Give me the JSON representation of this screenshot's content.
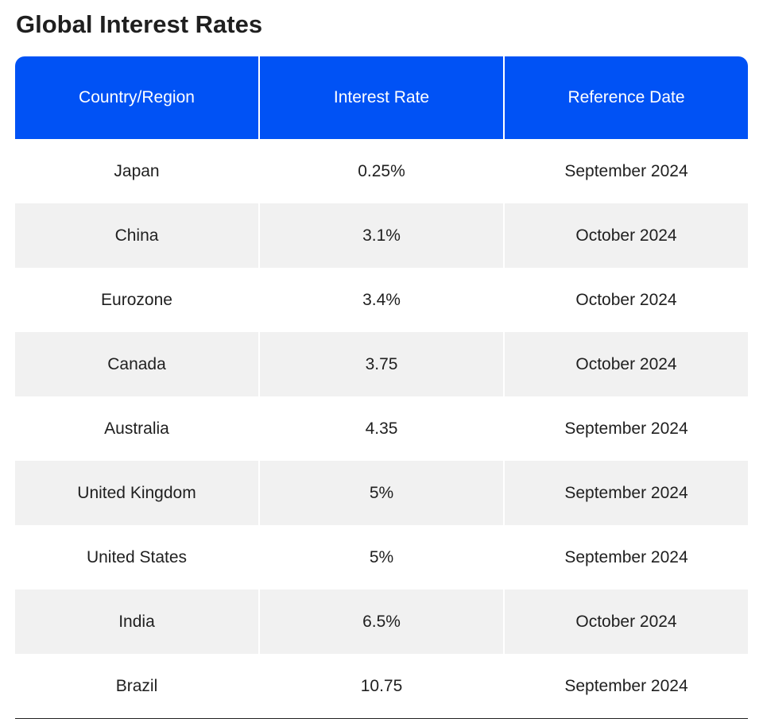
{
  "title": "Global Interest Rates",
  "chart_data": {
    "type": "table",
    "title": "Global Interest Rates",
    "columns": [
      "Country/Region",
      "Interest Rate",
      "Reference Date"
    ],
    "rows": [
      [
        "Japan",
        "0.25%",
        "September 2024"
      ],
      [
        "China",
        "3.1%",
        "October 2024"
      ],
      [
        "Eurozone",
        "3.4%",
        "October 2024"
      ],
      [
        "Canada",
        "3.75",
        "October 2024"
      ],
      [
        "Australia",
        "4.35",
        "September 2024"
      ],
      [
        "United Kingdom",
        "5%",
        "September 2024"
      ],
      [
        "United States",
        "5%",
        "September 2024"
      ],
      [
        "India",
        "6.5%",
        "October 2024"
      ],
      [
        "Brazil",
        "10.75",
        "September 2024"
      ]
    ]
  },
  "colors": {
    "header_bg": "#0052f5",
    "header_text": "#ffffff",
    "stripe_bg": "#f1f1f1",
    "text": "#1f1f1f"
  }
}
